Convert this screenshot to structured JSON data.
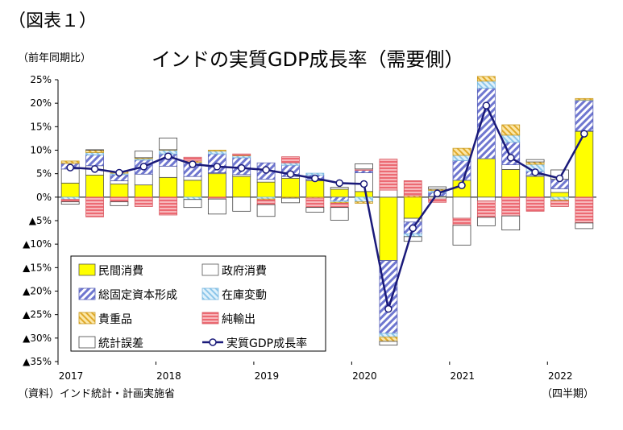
{
  "figure_label": "（図表１）",
  "unit_label": "（前年同期比）",
  "source_note": "（資料）インド統計・計画実施省",
  "period_note": "（四半期）",
  "colors": {
    "consumption": "#ffff00",
    "government": "#ffffff",
    "gfcf": "#7b83d6",
    "inventory": "#a8d8f0",
    "valuables": "#f5c842",
    "net_exports": "#f07a82",
    "discrepancy": "#ffffff",
    "gdp_line": "#1a1a7a"
  },
  "chart_data": {
    "type": "bar",
    "title": "インドの実質GDP成長率（需要側）",
    "stacked": true,
    "ylim": [
      -35,
      25
    ],
    "yticks": [
      25,
      20,
      15,
      10,
      5,
      0,
      -5,
      -10,
      -15,
      -20,
      -25,
      -30,
      -35
    ],
    "ytick_labels": [
      "25%",
      "20%",
      "15%",
      "10%",
      "5%",
      "0%",
      "▲5%",
      "▲10%",
      "▲15%",
      "▲20%",
      "▲25%",
      "▲30%",
      "▲35%"
    ],
    "x_year_labels": [
      {
        "label": "2017",
        "index": 0
      },
      {
        "label": "2018",
        "index": 4
      },
      {
        "label": "2019",
        "index": 8
      },
      {
        "label": "2020",
        "index": 12
      },
      {
        "label": "2021",
        "index": 16
      },
      {
        "label": "2022",
        "index": 20
      }
    ],
    "categories": [
      "2017Q1",
      "2017Q2",
      "2017Q3",
      "2017Q4",
      "2018Q1",
      "2018Q2",
      "2018Q3",
      "2018Q4",
      "2019Q1",
      "2019Q2",
      "2019Q3",
      "2019Q4",
      "2020Q1",
      "2020Q2",
      "2020Q3",
      "2020Q4",
      "2021Q1",
      "2021Q2",
      "2021Q3",
      "2021Q4",
      "2022Q1",
      "2022Q2"
    ],
    "legend_position": "inside-bottom-left",
    "series": [
      {
        "name": "民間消費",
        "key": "consumption",
        "values": [
          3.0,
          4.7,
          2.8,
          2.6,
          4.2,
          3.6,
          5.0,
          4.4,
          3.2,
          4.0,
          3.5,
          1.7,
          1.2,
          -13.5,
          -4.5,
          0.2,
          3.6,
          8.2,
          5.9,
          4.4,
          1.0,
          14.0
        ]
      },
      {
        "name": "政府消費",
        "key": "government",
        "values": [
          3.0,
          2.0,
          0.7,
          2.3,
          2.4,
          0.8,
          0.2,
          0.4,
          0.6,
          0.4,
          0.3,
          0.4,
          4.0,
          1.5,
          -0.8,
          -0.4,
          -4.5,
          -0.8,
          1.0,
          0.3,
          0.8,
          0.1
        ]
      },
      {
        "name": "総固定資本形成",
        "key": "gfcf",
        "values": [
          1.2,
          2.3,
          1.3,
          3.0,
          2.6,
          3.0,
          4.0,
          3.6,
          3.5,
          2.4,
          0.9,
          -0.8,
          0.5,
          -15.5,
          -2.5,
          0.8,
          4.2,
          15.0,
          4.8,
          0.8,
          2.0,
          6.5
        ]
      },
      {
        "name": "在庫変動",
        "key": "inventory",
        "values": [
          -0.5,
          0.5,
          0.3,
          0.3,
          0.8,
          -0.5,
          0.6,
          0.4,
          -0.4,
          0.5,
          0.4,
          -0.3,
          -1.0,
          -0.8,
          -0.6,
          0.4,
          1.1,
          1.5,
          1.5,
          1.5,
          -0.6,
          0.1
        ]
      },
      {
        "name": "貴重品",
        "key": "valuables",
        "values": [
          0.5,
          0.5,
          0.3,
          0.2,
          0.1,
          0.3,
          0.2,
          0.1,
          -0.2,
          -0.2,
          -0.2,
          -0.2,
          -0.3,
          -0.9,
          0.3,
          0.3,
          1.5,
          1.0,
          2.2,
          0.5,
          -0.2,
          0.3
        ]
      },
      {
        "name": "純輸出",
        "key": "net_exports",
        "values": [
          -0.5,
          -4.2,
          -1.0,
          -2.0,
          -3.8,
          0.8,
          -0.4,
          0.3,
          -1.0,
          1.3,
          -2.0,
          -0.9,
          0.3,
          6.6,
          3.2,
          -0.7,
          -1.5,
          -3.5,
          -4.0,
          -3.0,
          -1.2,
          -5.5
        ]
      },
      {
        "name": "統計誤差",
        "key": "discrepancy",
        "values": [
          -0.5,
          0.1,
          -0.8,
          1.4,
          2.5,
          -1.7,
          -3.2,
          -3.0,
          -2.5,
          -1.0,
          -1.0,
          -2.7,
          1.1,
          -0.8,
          -1.0,
          0.5,
          -4.2,
          -1.8,
          -3.0,
          0.5,
          2.0,
          -1.2
        ]
      }
    ],
    "line": {
      "name": "実質GDP成長率",
      "values": [
        6.3,
        6.0,
        5.2,
        6.5,
        8.7,
        7.0,
        6.5,
        6.2,
        5.8,
        4.9,
        4.0,
        3.0,
        2.8,
        -23.8,
        -6.6,
        0.8,
        2.5,
        19.5,
        8.4,
        5.3,
        4.0,
        13.5
      ]
    }
  }
}
